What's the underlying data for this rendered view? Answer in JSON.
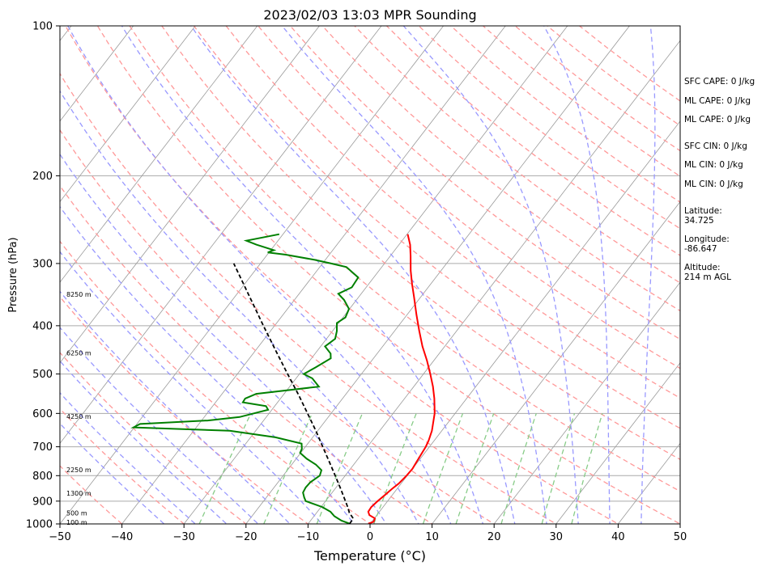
{
  "chart_data": {
    "type": "skew-t",
    "title": "2023/02/03 13:03 MPR Sounding",
    "xlabel": "Temperature (°C)",
    "ylabel": "Pressure (hPa)",
    "xlim": [
      -50,
      50
    ],
    "ylim": [
      1000,
      100
    ],
    "y_scale": "log",
    "grid": true,
    "x_ticks": [
      -50,
      -40,
      -30,
      -20,
      -10,
      0,
      10,
      20,
      30,
      40,
      50
    ],
    "x_tick_labels": [
      "−50",
      "−40",
      "−30",
      "−20",
      "−10",
      "0",
      "10",
      "20",
      "30",
      "40",
      "50"
    ],
    "y_ticks": [
      1000,
      900,
      800,
      700,
      600,
      500,
      400,
      300,
      200,
      100
    ],
    "y_tick_labels": [
      "1000",
      "900",
      "800",
      "700",
      "600",
      "500",
      "400",
      "300",
      "200",
      "100"
    ],
    "colors": {
      "temperature": "#ff0000",
      "dewpoint": "#008000",
      "parcel": "#000000",
      "isotherm": "#999999",
      "dry_adiabat": "#ff9999",
      "moist_adiabat": "#9999ff",
      "mixing_ratio": "#88cc88",
      "height_ref": "#cc99cc",
      "isobar": "#aaaaaa"
    },
    "series": [
      {
        "kind": "temperature",
        "points": [
          [
            999,
            -0.3
          ],
          [
            990,
            0.3
          ],
          [
            975,
            0.1
          ],
          [
            960,
            -1.2
          ],
          [
            945,
            -1.8
          ],
          [
            925,
            -1.9
          ],
          [
            900,
            -1.6
          ],
          [
            875,
            -1.2
          ],
          [
            850,
            -0.8
          ],
          [
            830,
            -0.4
          ],
          [
            800,
            -0.1
          ],
          [
            775,
            0.0
          ],
          [
            750,
            -0.2
          ],
          [
            725,
            -0.4
          ],
          [
            700,
            -0.6
          ],
          [
            680,
            -0.9
          ],
          [
            650,
            -1.6
          ],
          [
            620,
            -2.6
          ],
          [
            600,
            -3.3
          ],
          [
            560,
            -5.2
          ],
          [
            530,
            -6.9
          ],
          [
            500,
            -8.9
          ],
          [
            470,
            -11.1
          ],
          [
            440,
            -13.6
          ],
          [
            410,
            -16.0
          ],
          [
            380,
            -18.5
          ],
          [
            350,
            -21.1
          ],
          [
            330,
            -23.0
          ],
          [
            310,
            -24.9
          ],
          [
            290,
            -26.7
          ],
          [
            275,
            -28.2
          ],
          [
            262,
            -29.9
          ]
        ]
      },
      {
        "kind": "dewpoint",
        "points": [
          [
            999,
            -3.3
          ],
          [
            985,
            -5.0
          ],
          [
            965,
            -6.7
          ],
          [
            945,
            -7.9
          ],
          [
            925,
            -9.8
          ],
          [
            910,
            -11.8
          ],
          [
            900,
            -13.2
          ],
          [
            885,
            -13.9
          ],
          [
            865,
            -14.7
          ],
          [
            845,
            -14.9
          ],
          [
            825,
            -14.8
          ],
          [
            800,
            -14.1
          ],
          [
            780,
            -14.5
          ],
          [
            760,
            -16.1
          ],
          [
            740,
            -18.3
          ],
          [
            720,
            -20.1
          ],
          [
            707,
            -20.3
          ],
          [
            690,
            -21.0
          ],
          [
            670,
            -26.0
          ],
          [
            650,
            -34.2
          ],
          [
            645,
            -42.0
          ],
          [
            640,
            -50.1
          ],
          [
            630,
            -49.5
          ],
          [
            620,
            -39.0
          ],
          [
            610,
            -34.3
          ],
          [
            590,
            -30.6
          ],
          [
            580,
            -31.4
          ],
          [
            570,
            -35.6
          ],
          [
            560,
            -35.7
          ],
          [
            548,
            -34.5
          ],
          [
            530,
            -25.3
          ],
          [
            510,
            -27.4
          ],
          [
            500,
            -29.3
          ],
          [
            485,
            -28.2
          ],
          [
            465,
            -26.9
          ],
          [
            455,
            -27.5
          ],
          [
            440,
            -29.3
          ],
          [
            425,
            -28.6
          ],
          [
            410,
            -29.3
          ],
          [
            395,
            -30.3
          ],
          [
            385,
            -29.6
          ],
          [
            370,
            -30.1
          ],
          [
            355,
            -32.0
          ],
          [
            345,
            -33.7
          ],
          [
            335,
            -32.3
          ],
          [
            320,
            -32.5
          ],
          [
            305,
            -35.7
          ],
          [
            300,
            -38.6
          ],
          [
            295,
            -41.7
          ],
          [
            288,
            -47.0
          ],
          [
            285,
            -50.2
          ],
          [
            282,
            -49.5
          ],
          [
            275,
            -53.0
          ],
          [
            270,
            -55.1
          ],
          [
            262,
            -50.6
          ]
        ]
      },
      {
        "kind": "parcel",
        "points": [
          [
            999,
            -3.3
          ],
          [
            975,
            -3.4
          ],
          [
            950,
            -4.7
          ],
          [
            925,
            -5.7
          ],
          [
            900,
            -6.8
          ],
          [
            850,
            -9.1
          ],
          [
            800,
            -11.6
          ],
          [
            750,
            -14.3
          ],
          [
            700,
            -17.2
          ],
          [
            650,
            -20.3
          ],
          [
            600,
            -23.8
          ],
          [
            550,
            -27.6
          ],
          [
            500,
            -31.9
          ],
          [
            450,
            -36.6
          ],
          [
            400,
            -41.8
          ],
          [
            350,
            -47.6
          ],
          [
            300,
            -54.3
          ]
        ]
      }
    ],
    "height_labels": [
      {
        "label": "100 m",
        "p": 993
      },
      {
        "label": "500 m",
        "p": 950
      },
      {
        "label": "1300 m",
        "p": 867
      },
      {
        "label": "2250 m",
        "p": 778
      },
      {
        "label": "4250 m",
        "p": 608
      },
      {
        "label": "6250 m",
        "p": 454
      },
      {
        "label": "8250 m",
        "p": 346
      }
    ]
  },
  "info": {
    "sfc_cape": "SFC CAPE: 0 J/kg",
    "ml_cape_1": "ML CAPE: 0 J/kg",
    "ml_cape_2": "ML CAPE: 0 J/kg",
    "sfc_cin": "SFC CIN: 0 J/kg",
    "ml_cin_1": "ML CIN: 0 J/kg",
    "ml_cin_2": "ML CIN: 0 J/kg",
    "latitude": "Latitude:\n34.725",
    "longitude": "Longitude:\n-86.647",
    "altitude": "Altitude:\n214 m AGL"
  }
}
